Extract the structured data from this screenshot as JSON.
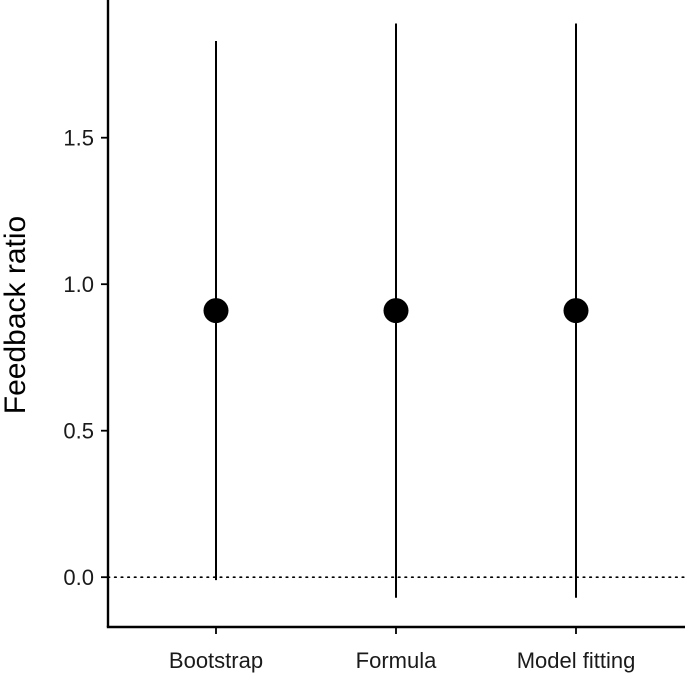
{
  "chart_data": {
    "type": "scatter",
    "title": "",
    "xlabel": "",
    "ylabel": "Feedback ratio",
    "categories": [
      "Bootstrap",
      "Formula",
      "Model fitting"
    ],
    "series": [
      {
        "values": [
          0.91,
          0.91,
          0.91
        ],
        "lower": [
          -0.01,
          -0.07,
          -0.07
        ],
        "upper": [
          1.83,
          1.89,
          1.89
        ]
      }
    ],
    "yticks": [
      0.0,
      0.5,
      1.0,
      1.5
    ],
    "ytick_labels": [
      "0.0",
      "0.5",
      "1.0",
      "1.5"
    ],
    "ylim": [
      -0.17,
      1.97
    ],
    "reference_line": {
      "y": 0.0,
      "style": "dotted"
    },
    "grid": false,
    "legend": "none",
    "colors": {
      "point": "#000000",
      "errorbar": "#000000",
      "axis": "#000000",
      "reference_line": "#000000"
    }
  }
}
